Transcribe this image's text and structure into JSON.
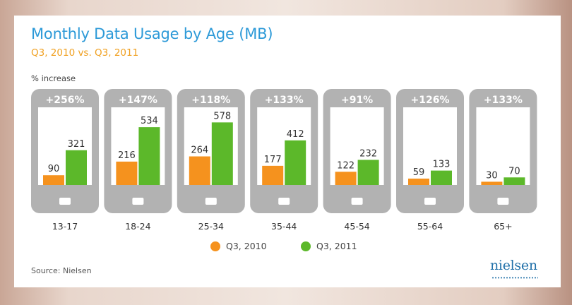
{
  "chart_data": {
    "type": "bar",
    "title": "Monthly Data Usage by Age (MB)",
    "subtitle": "Q3, 2010 vs. Q3, 2011",
    "increase_label": "% increase",
    "categories": [
      "13-17",
      "18-24",
      "25-34",
      "35-44",
      "45-54",
      "55-64",
      "65+"
    ],
    "increases": [
      "+256%",
      "+147%",
      "+118%",
      "+133%",
      "+91%",
      "+126%",
      "+133%"
    ],
    "series": [
      {
        "name": "Q3, 2010",
        "values": [
          90,
          216,
          264,
          177,
          122,
          59,
          30
        ],
        "color": "#f5921e"
      },
      {
        "name": "Q3, 2011",
        "values": [
          321,
          534,
          578,
          412,
          232,
          133,
          70
        ],
        "color": "#5cb82a"
      }
    ],
    "ylim": [
      0,
      600
    ],
    "source": "Source: Nielsen",
    "brand": "nielsen"
  },
  "colors": {
    "title": "#2d9ad8",
    "subtitle": "#f0a020",
    "phone_body": "#b2b2b2",
    "phone_screen": "#ffffff",
    "brand": "#1f6fa8"
  }
}
